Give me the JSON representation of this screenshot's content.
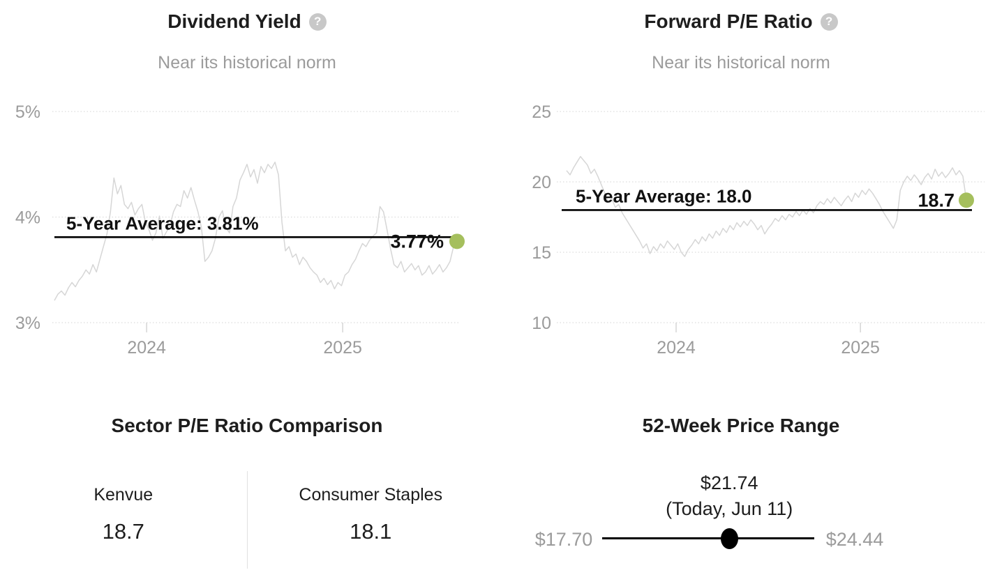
{
  "colors": {
    "accent_green": "#a5bf5d",
    "series_gray": "#d6d6d6",
    "grid_gray": "#dcdcdc",
    "text_gray": "#9b9b9b",
    "text_black": "#1d1d1d"
  },
  "icons": {
    "help": "?"
  },
  "chart_data": [
    {
      "type": "line",
      "title": "Dividend Yield",
      "subtitle": "Near its historical norm",
      "ylim": [
        3,
        5
      ],
      "yticks": [
        {
          "value": 5,
          "label": "5%"
        },
        {
          "value": 4,
          "label": "4%"
        },
        {
          "value": 3,
          "label": "3%"
        }
      ],
      "xticks": [
        {
          "pos": 0.229,
          "label": "2024"
        },
        {
          "pos": 0.716,
          "label": "2025"
        }
      ],
      "grid": true,
      "legend": "none",
      "average": {
        "value": 3.81,
        "label": "5-Year Average: 3.81%"
      },
      "current": {
        "value": 3.77,
        "label": "3.77%"
      },
      "series_color": "#d6d6d6",
      "values": [
        3.21,
        3.27,
        3.3,
        3.26,
        3.33,
        3.38,
        3.34,
        3.4,
        3.44,
        3.5,
        3.46,
        3.55,
        3.48,
        3.6,
        3.72,
        3.84,
        4.05,
        4.37,
        4.22,
        4.3,
        4.12,
        4.08,
        4.14,
        4.02,
        4.08,
        4.12,
        3.95,
        3.88,
        3.78,
        3.85,
        4.01,
        3.8,
        3.86,
        3.92,
        4.05,
        4.12,
        4.1,
        4.25,
        4.18,
        4.28,
        4.16,
        4.05,
        3.9,
        3.58,
        3.62,
        3.68,
        3.8,
        4.0,
        4.06,
        3.9,
        3.85,
        4.1,
        4.18,
        4.35,
        4.42,
        4.5,
        4.38,
        4.45,
        4.32,
        4.48,
        4.42,
        4.5,
        4.46,
        4.52,
        4.4,
        3.95,
        3.68,
        3.72,
        3.62,
        3.65,
        3.55,
        3.62,
        3.58,
        3.52,
        3.48,
        3.45,
        3.38,
        3.42,
        3.36,
        3.4,
        3.32,
        3.38,
        3.35,
        3.45,
        3.48,
        3.55,
        3.6,
        3.68,
        3.75,
        3.72,
        3.78,
        3.82,
        3.85,
        4.1,
        4.05,
        3.88,
        3.7,
        3.55,
        3.52,
        3.58,
        3.48,
        3.52,
        3.56,
        3.5,
        3.54,
        3.45,
        3.48,
        3.54,
        3.46,
        3.5,
        3.55,
        3.48,
        3.52,
        3.58,
        3.72,
        3.77
      ]
    },
    {
      "type": "line",
      "title": "Forward P/E Ratio",
      "subtitle": "Near its historical norm",
      "ylim": [
        10,
        25
      ],
      "yticks": [
        {
          "value": 25,
          "label": "25"
        },
        {
          "value": 20,
          "label": "20"
        },
        {
          "value": 15,
          "label": "15"
        },
        {
          "value": 10,
          "label": "10"
        }
      ],
      "xticks": [
        {
          "pos": 0.274,
          "label": "2024"
        },
        {
          "pos": 0.735,
          "label": "2025"
        }
      ],
      "grid": true,
      "legend": "none",
      "average": {
        "value": 18.0,
        "label": "5-Year Average: 18.0"
      },
      "current": {
        "value": 18.7,
        "label": "18.7"
      },
      "series_color": "#d6d6d6",
      "values": [
        20.8,
        20.5,
        21.0,
        21.4,
        21.8,
        21.5,
        21.2,
        20.6,
        20.9,
        20.4,
        19.8,
        19.2,
        18.6,
        18.8,
        18.2,
        18.4,
        17.8,
        17.4,
        17.0,
        16.6,
        16.2,
        15.8,
        15.3,
        15.6,
        14.9,
        15.4,
        15.1,
        15.6,
        15.3,
        15.8,
        15.5,
        15.2,
        15.6,
        15.0,
        14.7,
        15.2,
        15.5,
        15.9,
        15.6,
        16.1,
        15.8,
        16.3,
        16.0,
        16.5,
        16.2,
        16.7,
        16.4,
        16.9,
        16.6,
        17.1,
        16.8,
        17.2,
        16.9,
        17.3,
        17.0,
        16.6,
        16.9,
        16.3,
        16.7,
        17.0,
        17.4,
        17.2,
        17.6,
        17.3,
        17.7,
        17.5,
        17.9,
        17.6,
        18.0,
        17.7,
        18.1,
        17.8,
        18.3,
        18.6,
        18.4,
        18.8,
        18.5,
        18.9,
        18.6,
        18.3,
        18.7,
        19.0,
        18.6,
        19.2,
        18.9,
        19.4,
        19.1,
        19.5,
        19.2,
        18.8,
        18.4,
        17.9,
        17.5,
        17.1,
        16.7,
        17.3,
        19.4,
        20.0,
        20.4,
        20.1,
        20.5,
        20.2,
        19.8,
        20.3,
        20.6,
        20.2,
        20.9,
        20.4,
        20.7,
        20.3,
        20.6,
        21.0,
        20.5,
        20.8,
        20.4,
        18.7
      ]
    }
  ],
  "panels": {
    "sector_comparison": {
      "title": "Sector P/E Ratio Comparison",
      "columns": [
        {
          "label": "Kenvue",
          "value": "18.7"
        },
        {
          "label": "Consumer Staples",
          "value": "18.1"
        }
      ]
    },
    "price_range": {
      "title": "52-Week Price Range",
      "current_price": "$21.74",
      "current_label": "(Today, Jun 11)",
      "low": "$17.70",
      "high": "$24.44",
      "low_value": 17.7,
      "current_value": 21.74,
      "high_value": 24.44
    }
  }
}
